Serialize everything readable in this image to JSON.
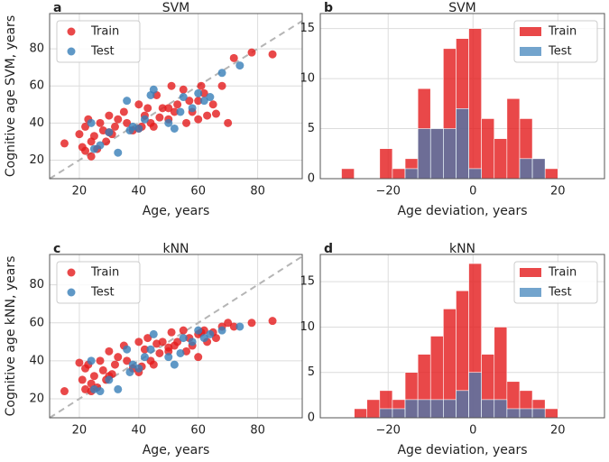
{
  "chart_data": [
    {
      "type": "scatter",
      "panel": "a",
      "title": "SVM",
      "xlabel": "Age, years",
      "ylabel": "Cognitive age SVM, years",
      "xlim": [
        10,
        95
      ],
      "ylim": [
        10,
        99
      ],
      "xticks": [
        20,
        40,
        60,
        80
      ],
      "yticks": [
        20,
        40,
        60,
        80
      ],
      "grid": true,
      "legend": "upper left",
      "identity_line": true,
      "series": [
        {
          "name": "Train",
          "color": "#e41a1c",
          "x": [
            15,
            20,
            21,
            22,
            22,
            23,
            24,
            25,
            26,
            27,
            28,
            29,
            30,
            31,
            32,
            33,
            35,
            36,
            38,
            40,
            41,
            42,
            43,
            44,
            45,
            46,
            47,
            48,
            50,
            51,
            52,
            53,
            55,
            56,
            57,
            58,
            60,
            61,
            62,
            63,
            65,
            66,
            68,
            70,
            72,
            78,
            85,
            24,
            30,
            40,
            50,
            60
          ],
          "values": [
            29,
            34,
            27,
            38,
            25,
            42,
            30,
            33,
            26,
            40,
            36,
            30,
            44,
            34,
            38,
            42,
            46,
            40,
            36,
            50,
            38,
            44,
            48,
            40,
            38,
            55,
            43,
            48,
            42,
            60,
            46,
            50,
            58,
            40,
            52,
            46,
            52,
            60,
            56,
            44,
            50,
            45,
            60,
            40,
            75,
            78,
            77,
            22,
            35,
            37,
            48,
            42
          ]
        },
        {
          "name": "Test",
          "color": "#377eb8",
          "x": [
            24,
            25,
            27,
            30,
            33,
            36,
            37,
            38,
            40,
            42,
            44,
            45,
            50,
            52,
            54,
            55,
            58,
            60,
            62,
            64,
            68,
            74
          ],
          "values": [
            40,
            26,
            28,
            35,
            24,
            52,
            36,
            38,
            37,
            42,
            55,
            58,
            40,
            37,
            46,
            54,
            48,
            56,
            52,
            54,
            67,
            71
          ]
        }
      ]
    },
    {
      "type": "histogram",
      "panel": "b",
      "title": "SVM",
      "xlabel": "Age deviation, years",
      "xlim": [
        -36,
        31
      ],
      "ylim": [
        0,
        16.5
      ],
      "xticks": [
        {
          "value": -20,
          "label": "−20"
        },
        0,
        20
      ],
      "yticks": [
        0,
        5,
        10,
        15
      ],
      "grid": true,
      "legend": "upper right",
      "bins": [
        -31,
        -28,
        -25,
        -22,
        -19,
        -16,
        -13,
        -10,
        -7,
        -4,
        -1,
        2,
        5,
        8,
        11,
        14,
        17,
        20
      ],
      "series": [
        {
          "name": "Train",
          "color": "#e41a1c",
          "values": [
            1,
            0,
            0,
            3,
            1,
            2,
            9,
            5,
            13,
            14,
            15,
            6,
            4,
            8,
            6,
            2,
            1
          ]
        },
        {
          "name": "Test",
          "color": "#377eb8",
          "values": [
            0,
            0,
            0,
            0,
            0,
            1,
            5,
            5,
            5,
            7,
            1,
            0,
            0,
            0,
            2,
            2,
            0
          ]
        }
      ]
    },
    {
      "type": "scatter",
      "panel": "c",
      "title": "kNN",
      "xlabel": "Age, years",
      "ylabel": "Cognitive age kNN, years",
      "xlim": [
        10,
        95
      ],
      "ylim": [
        10,
        96
      ],
      "xticks": [
        20,
        40,
        60,
        80
      ],
      "yticks": [
        20,
        40,
        60,
        80
      ],
      "grid": true,
      "legend": "upper left",
      "identity_line": true,
      "series": [
        {
          "name": "Train",
          "color": "#e41a1c",
          "x": [
            15,
            20,
            21,
            22,
            22,
            23,
            24,
            25,
            26,
            27,
            28,
            29,
            30,
            31,
            32,
            33,
            35,
            36,
            38,
            40,
            41,
            42,
            43,
            44,
            45,
            46,
            47,
            48,
            50,
            51,
            52,
            53,
            55,
            56,
            57,
            58,
            60,
            61,
            62,
            63,
            65,
            66,
            68,
            70,
            72,
            78,
            85,
            24,
            30,
            40,
            50,
            60
          ],
          "values": [
            24,
            39,
            30,
            36,
            25,
            38,
            28,
            32,
            26,
            40,
            35,
            30,
            45,
            33,
            38,
            42,
            48,
            40,
            36,
            50,
            37,
            46,
            52,
            40,
            38,
            49,
            44,
            50,
            45,
            55,
            48,
            50,
            56,
            45,
            52,
            48,
            54,
            55,
            56,
            50,
            55,
            52,
            58,
            60,
            58,
            60,
            61,
            24,
            32,
            34,
            47,
            42
          ]
        },
        {
          "name": "Test",
          "color": "#377eb8",
          "x": [
            24,
            25,
            27,
            30,
            33,
            36,
            37,
            38,
            40,
            42,
            44,
            45,
            50,
            52,
            54,
            55,
            58,
            60,
            62,
            64,
            68,
            74
          ],
          "values": [
            40,
            25,
            24,
            30,
            25,
            46,
            34,
            38,
            36,
            42,
            46,
            54,
            42,
            38,
            44,
            52,
            50,
            56,
            52,
            54,
            56,
            58
          ]
        }
      ]
    },
    {
      "type": "histogram",
      "panel": "d",
      "title": "kNN",
      "xlabel": "Age deviation, years",
      "xlim": [
        -36,
        31
      ],
      "ylim": [
        0,
        18
      ],
      "xticks": [
        {
          "value": -20,
          "label": "−20"
        },
        0,
        20
      ],
      "yticks": [
        0,
        5,
        10,
        15
      ],
      "grid": true,
      "legend": "upper right",
      "bins": [
        -28,
        -25,
        -22,
        -19,
        -16,
        -13,
        -10,
        -7,
        -4,
        -1,
        2,
        5,
        8,
        11,
        14,
        17,
        20,
        23,
        26
      ],
      "series": [
        {
          "name": "Train",
          "color": "#e41a1c",
          "values": [
            1,
            2,
            3,
            2,
            5,
            7,
            9,
            12,
            14,
            17,
            7,
            10,
            4,
            3,
            2,
            1,
            0,
            0
          ]
        },
        {
          "name": "Test",
          "color": "#377eb8",
          "values": [
            0,
            0,
            1,
            1,
            2,
            2,
            2,
            2,
            3,
            5,
            2,
            2,
            1,
            1,
            1,
            0,
            0,
            0
          ]
        }
      ]
    }
  ]
}
